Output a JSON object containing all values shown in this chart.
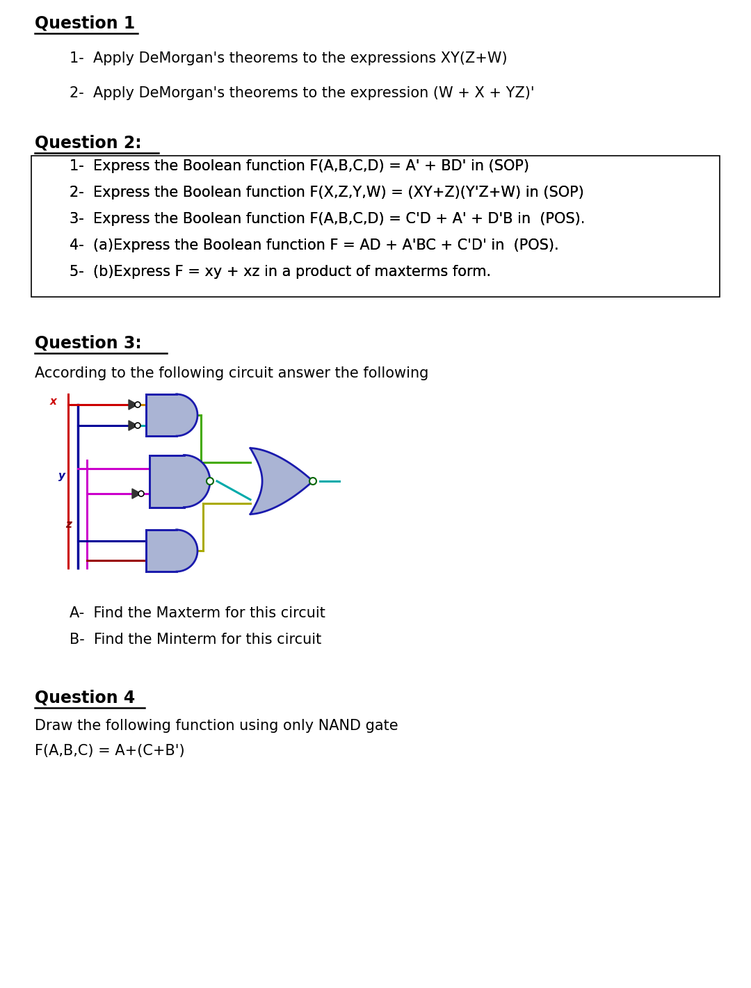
{
  "bg_color": "#ffffff",
  "q1_title": "Question 1",
  "q1_1": "1-  Apply DeMorgan's theorems to the expressions XY(Z+W)",
  "q1_2": "2-  Apply DeMorgan's theorems to the expression (W + X + YZ)'",
  "q2_title": "Question 2:",
  "q2_1": "1-  Express the Boolean function F(A,B,C,D) = A' + BD' in (SOP)",
  "q2_2": "2-  Express the Boolean function F(X,Z,Y,W) = (XY+Z)(Y'Z+W) in (SOP)",
  "q2_3": "3-  Express the Boolean function F(A,B,C,D) = C'D + A' + D'B in  (POS).",
  "q2_4": "4-  (a)Express the Boolean function F = AD + A'BC + C'D' in  (POS).",
  "q2_5": "5-  (b)Express F = xy + xz in a product of maxterms form.",
  "q3_title": "Question 3:",
  "q3_intro": "According to the following circuit answer the following",
  "q3_a": "A-  Find the Maxterm for this circuit",
  "q3_b": "B-  Find the Minterm for this circuit",
  "q4_title": "Question 4",
  "q4_1": "Draw the following function using only NAND gate",
  "q4_2": "F(A,B,C) = A+(C+B')",
  "gate_fill": "#aab4d4",
  "gate_edge": "#1a1aad",
  "c_x": "#cc0000",
  "c_y": "#000099",
  "c_z": "#990000",
  "c_mag": "#cc00cc",
  "c_grn": "#44aa00",
  "c_cyn": "#00aaaa",
  "c_ylw": "#aaaa00",
  "c_orng": "#cc8800"
}
